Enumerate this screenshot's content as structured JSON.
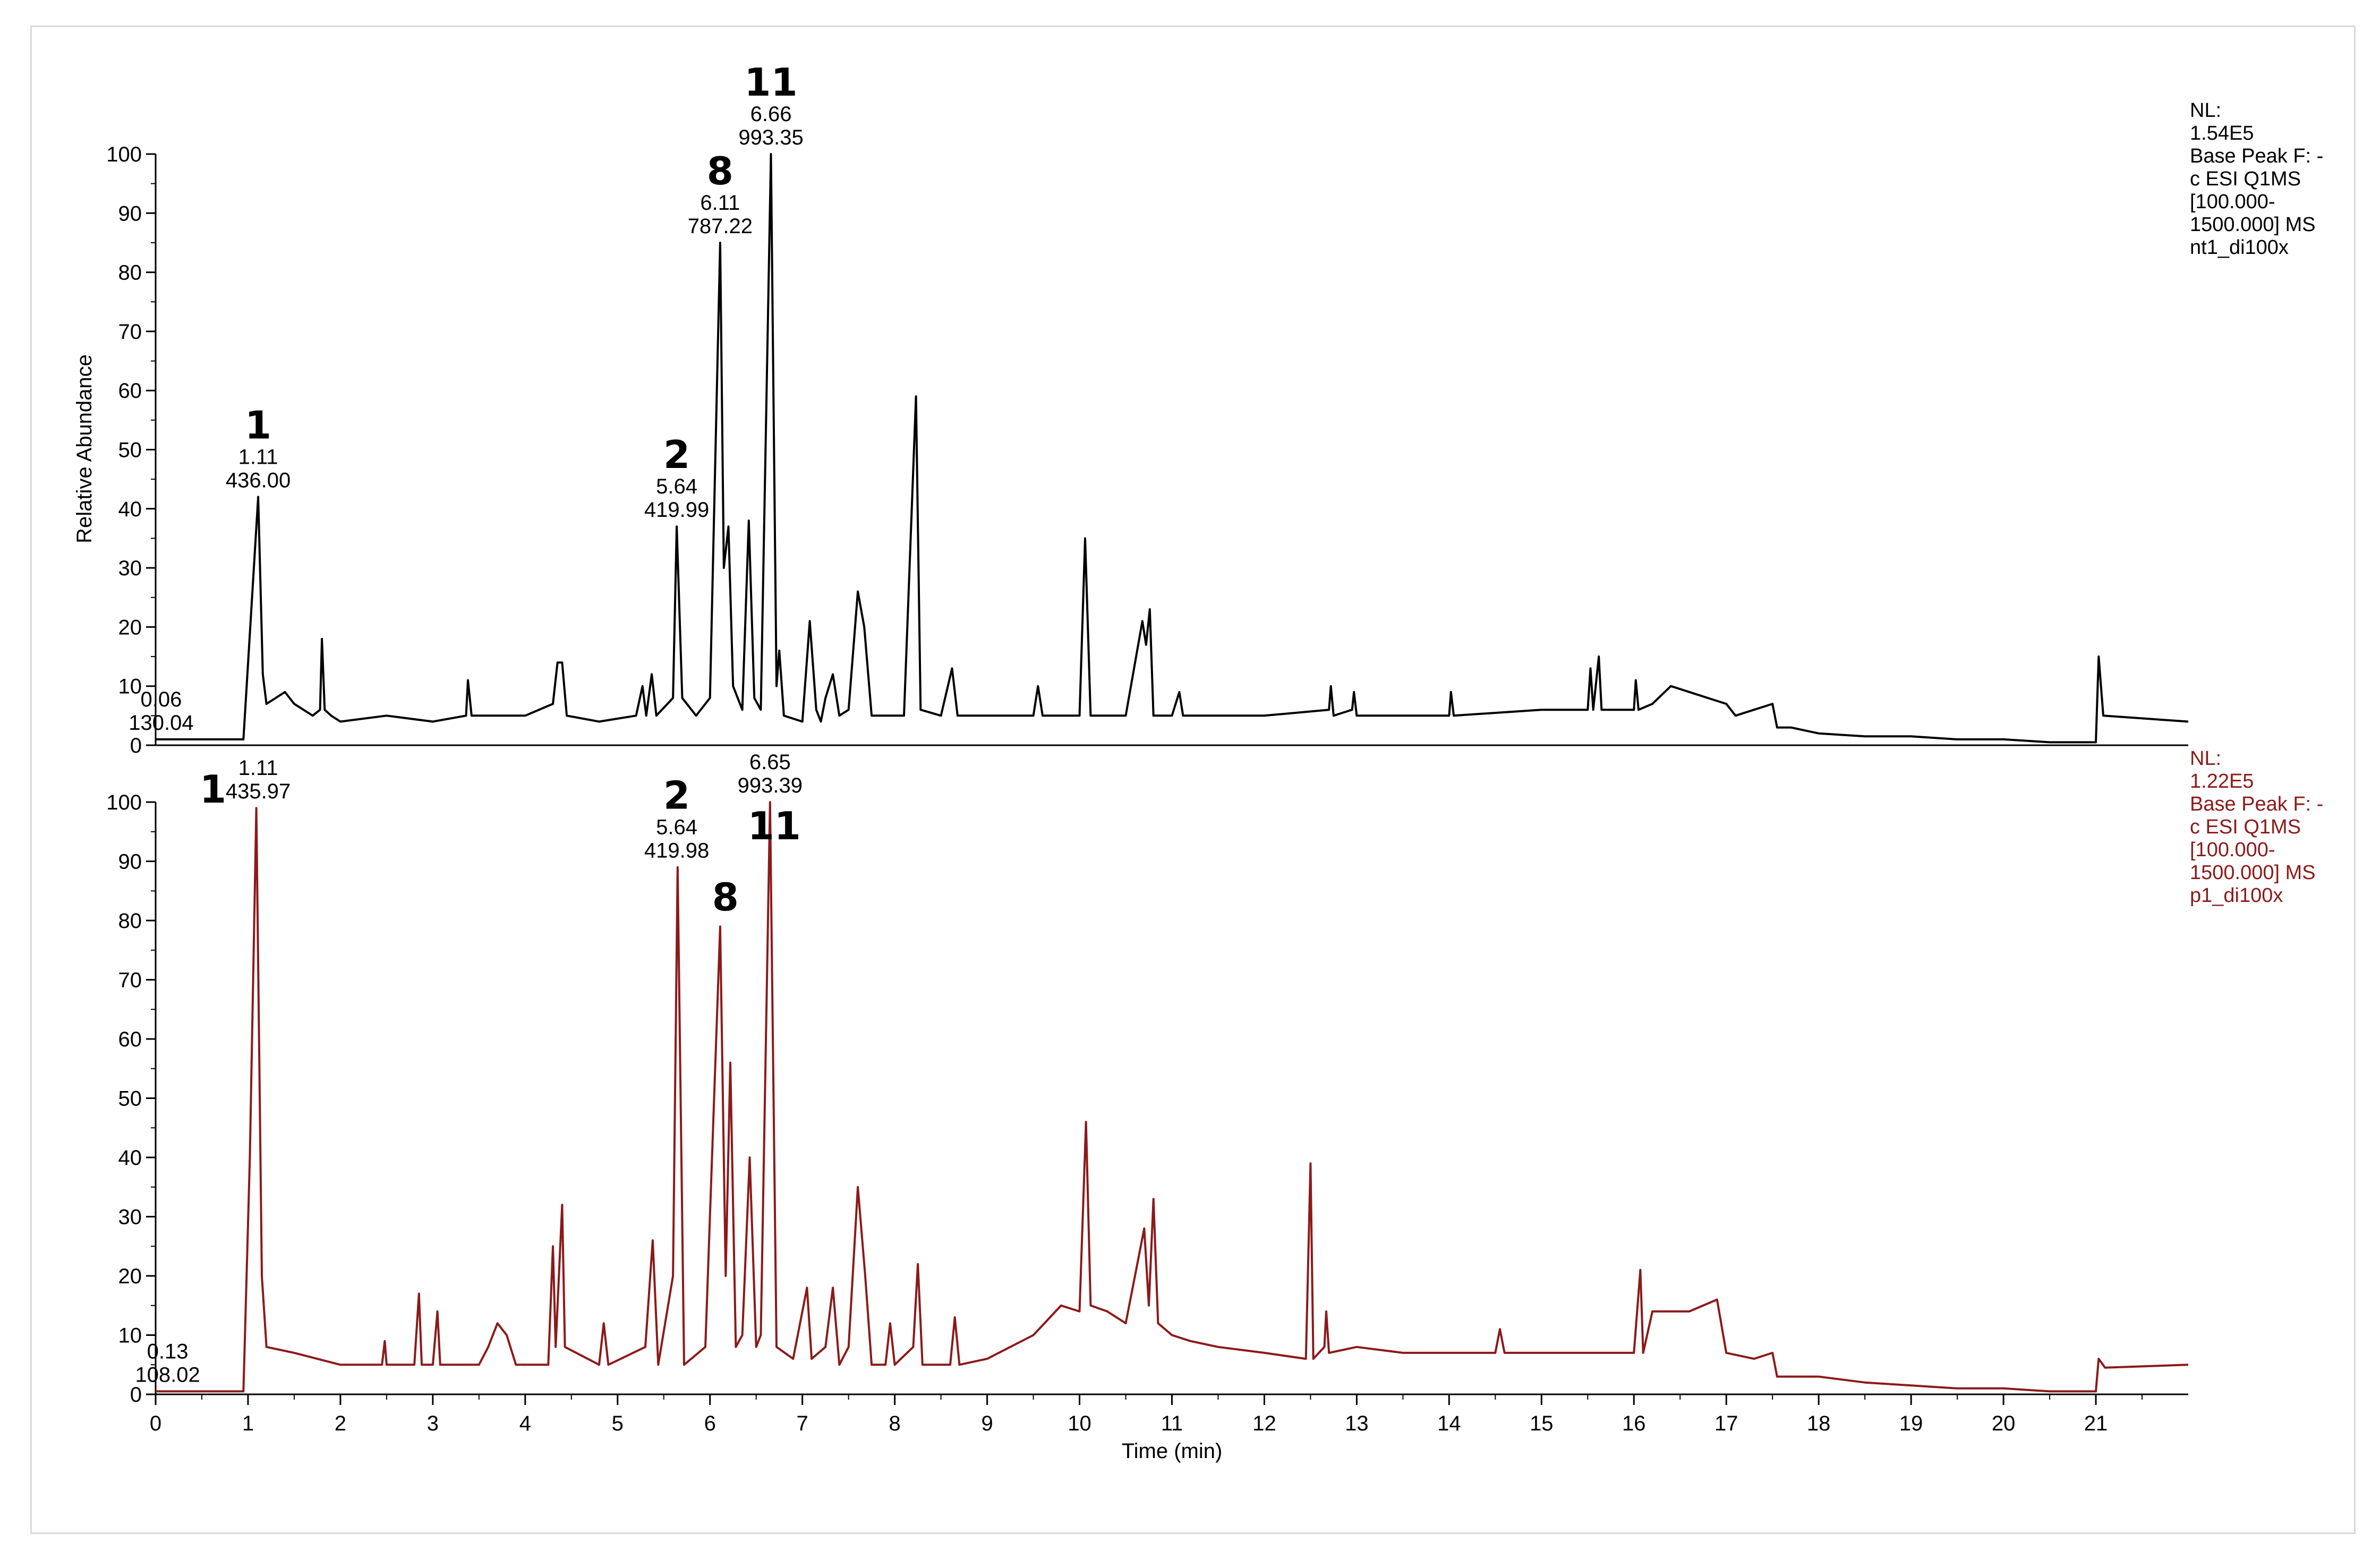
{
  "chart_data": [
    {
      "type": "line",
      "panel": "top",
      "color": "#000000",
      "ylabel": "Relative Abundance",
      "xlabel": "",
      "ylim": [
        0,
        100
      ],
      "yticks": [
        "0",
        "10",
        "20",
        "30",
        "40",
        "50",
        "60",
        "70",
        "80",
        "90",
        "100"
      ],
      "info": [
        "NL:",
        "1.54E5",
        "Base Peak F: -",
        "c ESI Q1MS",
        "[100.000-",
        "1500.000]  MS",
        "nt1_di100x"
      ],
      "baseline": [
        [
          0,
          1
        ],
        [
          0.95,
          1
        ],
        [
          1.04,
          24
        ],
        [
          1.11,
          42
        ],
        [
          1.16,
          12
        ],
        [
          1.2,
          7
        ],
        [
          1.3,
          8
        ],
        [
          1.4,
          9
        ],
        [
          1.5,
          7
        ],
        [
          1.6,
          6
        ],
        [
          1.7,
          5
        ],
        [
          1.78,
          6
        ],
        [
          1.8,
          18
        ],
        [
          1.83,
          6
        ],
        [
          1.9,
          5
        ],
        [
          2.0,
          4
        ],
        [
          2.5,
          5
        ],
        [
          3.0,
          4
        ],
        [
          3.36,
          5
        ],
        [
          3.38,
          11
        ],
        [
          3.42,
          5
        ],
        [
          4.0,
          5
        ],
        [
          4.3,
          7
        ],
        [
          4.35,
          14
        ],
        [
          4.4,
          14
        ],
        [
          4.45,
          5
        ],
        [
          4.8,
          4
        ],
        [
          5.2,
          5
        ],
        [
          5.27,
          10
        ],
        [
          5.31,
          5
        ],
        [
          5.37,
          12
        ],
        [
          5.42,
          5
        ],
        [
          5.6,
          8
        ],
        [
          5.64,
          37
        ],
        [
          5.7,
          8
        ],
        [
          5.85,
          5
        ],
        [
          6.0,
          8
        ],
        [
          6.11,
          85
        ],
        [
          6.15,
          30
        ],
        [
          6.2,
          37
        ],
        [
          6.25,
          10
        ],
        [
          6.35,
          6
        ],
        [
          6.42,
          38
        ],
        [
          6.48,
          8
        ],
        [
          6.55,
          6
        ],
        [
          6.66,
          100
        ],
        [
          6.72,
          10
        ],
        [
          6.75,
          16
        ],
        [
          6.8,
          5
        ],
        [
          7.0,
          4
        ],
        [
          7.08,
          21
        ],
        [
          7.15,
          6
        ],
        [
          7.2,
          4
        ],
        [
          7.25,
          8
        ],
        [
          7.33,
          12
        ],
        [
          7.4,
          5
        ],
        [
          7.5,
          6
        ],
        [
          7.6,
          26
        ],
        [
          7.67,
          20
        ],
        [
          7.75,
          5
        ],
        [
          8.1,
          5
        ],
        [
          8.23,
          59
        ],
        [
          8.28,
          6
        ],
        [
          8.5,
          5
        ],
        [
          8.62,
          13
        ],
        [
          8.68,
          5
        ],
        [
          9.5,
          5
        ],
        [
          9.55,
          10
        ],
        [
          9.6,
          5
        ],
        [
          10.0,
          5
        ],
        [
          10.06,
          35
        ],
        [
          10.12,
          5
        ],
        [
          10.5,
          5
        ],
        [
          10.68,
          21
        ],
        [
          10.72,
          17
        ],
        [
          10.76,
          23
        ],
        [
          10.8,
          5
        ],
        [
          11.0,
          5
        ],
        [
          11.08,
          9
        ],
        [
          11.12,
          5
        ],
        [
          12.0,
          5
        ],
        [
          12.7,
          6
        ],
        [
          12.72,
          10
        ],
        [
          12.75,
          5
        ],
        [
          12.95,
          6
        ],
        [
          12.97,
          9
        ],
        [
          13.0,
          5
        ],
        [
          13.5,
          5
        ],
        [
          14.0,
          5
        ],
        [
          14.02,
          9
        ],
        [
          14.05,
          5
        ],
        [
          15.0,
          6
        ],
        [
          15.5,
          6
        ],
        [
          15.53,
          13
        ],
        [
          15.56,
          6
        ],
        [
          15.62,
          15
        ],
        [
          15.65,
          6
        ],
        [
          15.8,
          6
        ],
        [
          16.0,
          6
        ],
        [
          16.02,
          11
        ],
        [
          16.05,
          6
        ],
        [
          16.2,
          7
        ],
        [
          16.4,
          10
        ],
        [
          16.6,
          9
        ],
        [
          16.8,
          8
        ],
        [
          17.0,
          7
        ],
        [
          17.1,
          5
        ],
        [
          17.3,
          6
        ],
        [
          17.5,
          7
        ],
        [
          17.55,
          3
        ],
        [
          17.7,
          3
        ],
        [
          18.0,
          2
        ],
        [
          18.5,
          1.5
        ],
        [
          19.0,
          1.5
        ],
        [
          19.5,
          1
        ],
        [
          20.0,
          1
        ],
        [
          20.5,
          0.5
        ],
        [
          21.0,
          0.5
        ],
        [
          21.03,
          15
        ],
        [
          21.08,
          5
        ],
        [
          22.0,
          4
        ]
      ],
      "peaks": [
        {
          "num": "1",
          "rt": "1.11",
          "mz": "436.00",
          "x": 1.11,
          "y": 42
        },
        {
          "num": "2",
          "rt": "5.64",
          "mz": "419.99",
          "x": 5.64,
          "y": 37
        },
        {
          "num": "8",
          "rt": "6.11",
          "mz": "787.22",
          "x": 6.11,
          "y": 85
        },
        {
          "num": "11",
          "rt": "6.66",
          "mz": "993.35",
          "x": 6.66,
          "y": 100
        },
        {
          "num": "",
          "rt": "0.06",
          "mz": "130.04",
          "x": 0.06,
          "y": 1
        }
      ]
    },
    {
      "type": "line",
      "panel": "bottom",
      "color": "#8b1a1a",
      "ylabel": "",
      "xlabel": "Time (min)",
      "ylim": [
        0,
        100
      ],
      "yticks": [
        "0",
        "10",
        "20",
        "30",
        "40",
        "50",
        "60",
        "70",
        "80",
        "90",
        "100"
      ],
      "xticks": [
        "0",
        "1",
        "2",
        "3",
        "4",
        "5",
        "6",
        "7",
        "8",
        "9",
        "10",
        "11",
        "12",
        "13",
        "14",
        "15",
        "16",
        "17",
        "18",
        "19",
        "20",
        "21"
      ],
      "xlim": [
        0,
        22
      ],
      "info": [
        "NL:",
        "1.22E5",
        "Base Peak F: -",
        "c ESI Q1MS",
        "[100.000-",
        "1500.000]  MS",
        "p1_di100x"
      ],
      "baseline": [
        [
          0,
          0.5
        ],
        [
          0.95,
          0.5
        ],
        [
          1.02,
          40
        ],
        [
          1.09,
          99
        ],
        [
          1.15,
          20
        ],
        [
          1.2,
          8
        ],
        [
          1.5,
          7
        ],
        [
          2.0,
          5
        ],
        [
          2.45,
          5
        ],
        [
          2.48,
          9
        ],
        [
          2.5,
          5
        ],
        [
          2.8,
          5
        ],
        [
          2.85,
          17
        ],
        [
          2.88,
          5
        ],
        [
          3.0,
          5
        ],
        [
          3.05,
          14
        ],
        [
          3.08,
          5
        ],
        [
          3.5,
          5
        ],
        [
          3.6,
          8
        ],
        [
          3.7,
          12
        ],
        [
          3.8,
          10
        ],
        [
          3.9,
          5
        ],
        [
          4.25,
          5
        ],
        [
          4.3,
          25
        ],
        [
          4.33,
          8
        ],
        [
          4.4,
          32
        ],
        [
          4.43,
          8
        ],
        [
          4.8,
          5
        ],
        [
          4.85,
          12
        ],
        [
          4.9,
          5
        ],
        [
          5.3,
          8
        ],
        [
          5.38,
          26
        ],
        [
          5.44,
          5
        ],
        [
          5.6,
          20
        ],
        [
          5.65,
          89
        ],
        [
          5.72,
          5
        ],
        [
          5.95,
          8
        ],
        [
          6.11,
          79
        ],
        [
          6.17,
          20
        ],
        [
          6.22,
          56
        ],
        [
          6.28,
          8
        ],
        [
          6.35,
          10
        ],
        [
          6.43,
          40
        ],
        [
          6.5,
          8
        ],
        [
          6.55,
          10
        ],
        [
          6.65,
          100
        ],
        [
          6.72,
          8
        ],
        [
          6.9,
          6
        ],
        [
          7.05,
          18
        ],
        [
          7.1,
          6
        ],
        [
          7.25,
          8
        ],
        [
          7.33,
          18
        ],
        [
          7.4,
          5
        ],
        [
          7.5,
          8
        ],
        [
          7.6,
          35
        ],
        [
          7.68,
          20
        ],
        [
          7.75,
          5
        ],
        [
          7.9,
          5
        ],
        [
          7.95,
          12
        ],
        [
          8.0,
          5
        ],
        [
          8.2,
          8
        ],
        [
          8.25,
          22
        ],
        [
          8.3,
          5
        ],
        [
          8.6,
          5
        ],
        [
          8.65,
          13
        ],
        [
          8.7,
          5
        ],
        [
          9.0,
          6
        ],
        [
          9.5,
          10
        ],
        [
          9.8,
          15
        ],
        [
          10.0,
          14
        ],
        [
          10.07,
          46
        ],
        [
          10.12,
          15
        ],
        [
          10.3,
          14
        ],
        [
          10.5,
          12
        ],
        [
          10.7,
          28
        ],
        [
          10.75,
          15
        ],
        [
          10.8,
          33
        ],
        [
          10.85,
          12
        ],
        [
          11.0,
          10
        ],
        [
          11.2,
          9
        ],
        [
          11.5,
          8
        ],
        [
          12.0,
          7
        ],
        [
          12.45,
          6
        ],
        [
          12.5,
          39
        ],
        [
          12.53,
          6
        ],
        [
          12.65,
          8
        ],
        [
          12.67,
          14
        ],
        [
          12.7,
          7
        ],
        [
          13.0,
          8
        ],
        [
          13.5,
          7
        ],
        [
          14.0,
          7
        ],
        [
          14.5,
          7
        ],
        [
          14.55,
          11
        ],
        [
          14.6,
          7
        ],
        [
          15.0,
          7
        ],
        [
          15.5,
          7
        ],
        [
          16.0,
          7
        ],
        [
          16.07,
          21
        ],
        [
          16.1,
          7
        ],
        [
          16.2,
          14
        ],
        [
          16.4,
          14
        ],
        [
          16.6,
          14
        ],
        [
          16.9,
          16
        ],
        [
          17.0,
          7
        ],
        [
          17.3,
          6
        ],
        [
          17.5,
          7
        ],
        [
          17.55,
          3
        ],
        [
          18.0,
          3
        ],
        [
          18.5,
          2
        ],
        [
          19.0,
          1.5
        ],
        [
          19.5,
          1
        ],
        [
          20.0,
          1
        ],
        [
          20.5,
          0.5
        ],
        [
          21.0,
          0.5
        ],
        [
          21.03,
          6
        ],
        [
          21.1,
          4.5
        ],
        [
          22.0,
          5
        ]
      ],
      "peaks": [
        {
          "num": "1",
          "rt": "1.11",
          "mz": "435.97",
          "x": 1.11,
          "y": 99
        },
        {
          "num": "2",
          "rt": "5.64",
          "mz": "419.98",
          "x": 5.64,
          "y": 89
        },
        {
          "num": "8",
          "rt": "",
          "mz": "",
          "x": 6.11,
          "y": 79
        },
        {
          "num": "11",
          "rt": "6.65",
          "mz": "993.39",
          "x": 6.65,
          "y": 100
        },
        {
          "num": "",
          "rt": "0.13",
          "mz": "108.02",
          "x": 0.13,
          "y": 0.5
        }
      ]
    }
  ]
}
